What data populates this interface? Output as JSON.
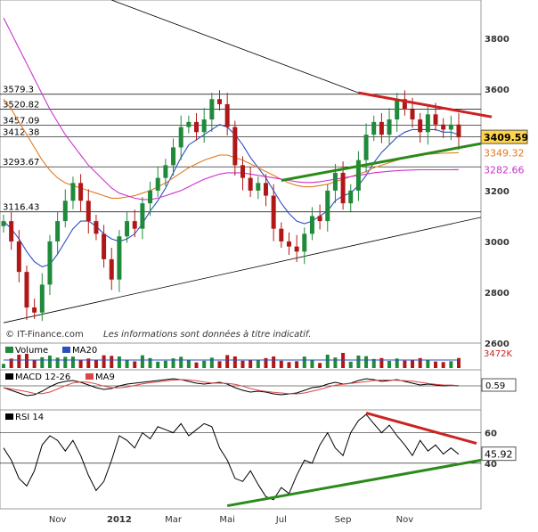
{
  "chart_data": {
    "type": "candlestick",
    "title": "",
    "watermark": "© IT-Finance.com",
    "disclaimer": "Les informations sont données à titre indicatif.",
    "x_ticks": [
      "Nov",
      "2012",
      "Mar",
      "Mai",
      "Jul",
      "Sep",
      "Nov"
    ],
    "price_panel": {
      "ylim": [
        2600,
        3950
      ],
      "y_ticks": [
        2600,
        2800,
        3000,
        3200,
        3400,
        3600,
        3800
      ],
      "grid": false,
      "horizontal_levels": [
        {
          "label": "3579.3",
          "value": 3579.3
        },
        {
          "label": "3520.82",
          "value": 3520.82
        },
        {
          "label": "3457.09",
          "value": 3457.09
        },
        {
          "label": "3412.38",
          "value": 3412.38
        },
        {
          "label": "3293.67",
          "value": 3293.67
        },
        {
          "label": "3116.43",
          "value": 3116.43
        }
      ],
      "last_values": [
        {
          "name": "Close",
          "label": "3409.59",
          "value": 3409.59,
          "color": "#000000",
          "bg": "#ffd34a"
        },
        {
          "name": "MA long (orange)",
          "label": "3349.32",
          "value": 3349.32,
          "color": "#e07a1f"
        },
        {
          "name": "MA (magenta)",
          "label": "3282.66",
          "value": 3282.66,
          "color": "#cc33cc"
        }
      ],
      "series": [
        {
          "name": "Close",
          "values": [
            3080,
            3000,
            2880,
            2740,
            2720,
            2830,
            3000,
            3080,
            3160,
            3230,
            3160,
            3080,
            3030,
            2930,
            2850,
            3020,
            3080,
            3050,
            3150,
            3200,
            3250,
            3300,
            3370,
            3450,
            3470,
            3430,
            3480,
            3560,
            3540,
            3450,
            3300,
            3250,
            3200,
            3230,
            3180,
            3050,
            3000,
            2980,
            2960,
            3030,
            3100,
            3080,
            3200,
            3270,
            3150,
            3200,
            3320,
            3420,
            3470,
            3420,
            3480,
            3560,
            3520,
            3480,
            3430,
            3500,
            3460,
            3440,
            3460,
            3409.59
          ]
        },
        {
          "name": "MA (blue)",
          "values": [
            3080,
            3050,
            3010,
            2960,
            2920,
            2900,
            2910,
            2950,
            3000,
            3050,
            3080,
            3080,
            3060,
            3030,
            3010,
            3000,
            3010,
            3030,
            3070,
            3120,
            3160,
            3210,
            3270,
            3330,
            3380,
            3400,
            3420,
            3440,
            3460,
            3450,
            3420,
            3380,
            3330,
            3290,
            3250,
            3200,
            3150,
            3110,
            3080,
            3070,
            3080,
            3100,
            3120,
            3160,
            3180,
            3190,
            3220,
            3260,
            3310,
            3350,
            3380,
            3410,
            3430,
            3440,
            3440,
            3440,
            3440,
            3430,
            3430,
            3420
          ]
        },
        {
          "name": "MA (orange)",
          "values": [
            3560,
            3520,
            3470,
            3420,
            3370,
            3320,
            3280,
            3250,
            3230,
            3220,
            3210,
            3200,
            3190,
            3180,
            3170,
            3170,
            3175,
            3180,
            3190,
            3200,
            3215,
            3230,
            3250,
            3270,
            3290,
            3305,
            3320,
            3330,
            3340,
            3340,
            3330,
            3320,
            3305,
            3290,
            3275,
            3260,
            3245,
            3230,
            3220,
            3215,
            3215,
            3220,
            3225,
            3235,
            3245,
            3255,
            3265,
            3275,
            3290,
            3300,
            3310,
            3320,
            3330,
            3335,
            3340,
            3343,
            3345,
            3347,
            3348,
            3349.32
          ]
        },
        {
          "name": "MA (magenta)",
          "values": [
            3880,
            3820,
            3760,
            3700,
            3640,
            3580,
            3520,
            3470,
            3420,
            3380,
            3340,
            3300,
            3270,
            3240,
            3210,
            3190,
            3180,
            3170,
            3165,
            3165,
            3170,
            3180,
            3190,
            3200,
            3215,
            3230,
            3245,
            3255,
            3265,
            3270,
            3270,
            3270,
            3265,
            3260,
            3255,
            3250,
            3245,
            3240,
            3235,
            3232,
            3232,
            3235,
            3240,
            3245,
            3250,
            3255,
            3260,
            3265,
            3270,
            3273,
            3276,
            3278,
            3280,
            3281,
            3282,
            3282,
            3282,
            3282,
            3282,
            3282.66
          ]
        }
      ]
    },
    "volume_panel": {
      "legend": [
        "Volume",
        "MA20"
      ],
      "last_value_label": "3472K"
    },
    "macd_panel": {
      "legend": [
        "MACD 12-26",
        "MA9"
      ],
      "last_value_label": "0.59",
      "values": [
        -10,
        -25,
        -40,
        -55,
        -50,
        -30,
        -5,
        15,
        25,
        30,
        20,
        5,
        -10,
        -20,
        -15,
        0,
        10,
        15,
        20,
        25,
        30,
        35,
        40,
        35,
        25,
        15,
        10,
        15,
        20,
        10,
        -10,
        -25,
        -35,
        -30,
        -35,
        -45,
        -50,
        -45,
        -40,
        -25,
        -10,
        -5,
        10,
        20,
        10,
        15,
        30,
        40,
        35,
        25,
        30,
        35,
        25,
        15,
        5,
        10,
        5,
        0,
        3,
        0.59
      ]
    },
    "rsi_panel": {
      "legend": [
        "RSI 14"
      ],
      "y_ticks": [
        40,
        60
      ],
      "ylim": [
        10,
        75
      ],
      "last_value_label": "45.92",
      "values": [
        50,
        42,
        30,
        25,
        35,
        52,
        58,
        55,
        48,
        55,
        45,
        32,
        22,
        28,
        42,
        58,
        55,
        50,
        60,
        56,
        64,
        62,
        60,
        66,
        58,
        62,
        66,
        64,
        50,
        42,
        30,
        28,
        35,
        26,
        18,
        16,
        24,
        20,
        32,
        42,
        40,
        52,
        60,
        50,
        45,
        60,
        68,
        72,
        66,
        60,
        65,
        58,
        52,
        45,
        55,
        48,
        52,
        46,
        50,
        45.92
      ]
    }
  }
}
